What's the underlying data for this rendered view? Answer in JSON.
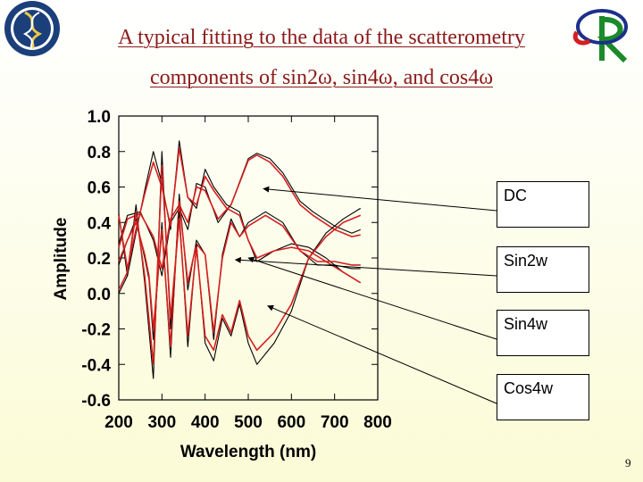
{
  "slide": {
    "title_line1": "A typical fitting to the data of the scatterometry",
    "title_line2": "components of sin2ω, sin4ω, and cos4ω",
    "page_number": "9",
    "seal_text": "ACADEMIA SINICA"
  },
  "labels": {
    "dc": "DC",
    "sin2w": "Sin2w",
    "sin4w": "Sin4w",
    "cos4w": "Cos4w"
  },
  "chart_data": {
    "type": "line",
    "xlabel": "Wavelength (nm)",
    "ylabel": "Amplitude",
    "xlim": [
      200,
      780
    ],
    "ylim": [
      -0.6,
      1.0
    ],
    "xticks": [
      200,
      300,
      400,
      500,
      600,
      700,
      800
    ],
    "yticks": [
      1.0,
      0.8,
      0.6,
      0.4,
      0.2,
      0.0,
      -0.2,
      -0.4,
      -0.6
    ],
    "colors": {
      "measured": "#000000",
      "fit": "#d42020"
    },
    "series": [
      {
        "component": "DC",
        "kind": "measured",
        "x": [
          200,
          220,
          250,
          280,
          300,
          320,
          340,
          360,
          380,
          400,
          430,
          460,
          500,
          520,
          550,
          580,
          620,
          650,
          700,
          740,
          760
        ],
        "y": [
          0.28,
          0.44,
          0.46,
          0.3,
          0.1,
          0.4,
          0.48,
          0.36,
          0.62,
          0.6,
          0.4,
          0.5,
          0.76,
          0.79,
          0.76,
          0.68,
          0.52,
          0.46,
          0.38,
          0.34,
          0.36
        ]
      },
      {
        "component": "DC",
        "kind": "fit",
        "x": [
          200,
          220,
          250,
          280,
          300,
          320,
          340,
          360,
          380,
          400,
          430,
          460,
          500,
          520,
          550,
          580,
          620,
          650,
          700,
          740,
          760
        ],
        "y": [
          0.26,
          0.42,
          0.45,
          0.32,
          0.14,
          0.42,
          0.5,
          0.4,
          0.6,
          0.58,
          0.42,
          0.5,
          0.75,
          0.78,
          0.74,
          0.66,
          0.5,
          0.44,
          0.36,
          0.32,
          0.33
        ]
      },
      {
        "component": "Sin2w",
        "kind": "measured",
        "x": [
          200,
          220,
          240,
          260,
          280,
          300,
          320,
          340,
          360,
          380,
          400,
          420,
          450,
          480,
          500,
          520,
          560,
          600,
          640,
          680,
          720,
          760
        ],
        "y": [
          0.45,
          0.1,
          0.34,
          0.58,
          0.8,
          0.62,
          0.36,
          0.86,
          0.54,
          0.48,
          0.7,
          0.6,
          0.5,
          0.46,
          0.3,
          0.18,
          0.24,
          0.28,
          0.26,
          0.2,
          0.12,
          0.06
        ]
      },
      {
        "component": "Sin2w",
        "kind": "fit",
        "x": [
          200,
          220,
          240,
          260,
          280,
          300,
          320,
          340,
          360,
          380,
          400,
          420,
          450,
          480,
          500,
          520,
          560,
          600,
          640,
          680,
          720,
          760
        ],
        "y": [
          0.44,
          0.14,
          0.36,
          0.56,
          0.74,
          0.6,
          0.38,
          0.82,
          0.54,
          0.5,
          0.66,
          0.58,
          0.48,
          0.44,
          0.3,
          0.2,
          0.24,
          0.26,
          0.24,
          0.18,
          0.12,
          0.06
        ]
      },
      {
        "component": "Sin4w",
        "kind": "measured",
        "x": [
          200,
          220,
          240,
          260,
          270,
          280,
          300,
          320,
          340,
          360,
          380,
          400,
          420,
          440,
          460,
          480,
          500,
          540,
          580,
          620,
          660,
          700,
          740,
          760
        ],
        "y": [
          0.16,
          0.3,
          0.42,
          0.2,
          0.08,
          -0.26,
          0.4,
          -0.36,
          0.56,
          0.02,
          0.3,
          0.22,
          -0.26,
          0.22,
          0.42,
          0.32,
          0.4,
          0.46,
          0.4,
          0.24,
          0.16,
          0.16,
          0.14,
          0.14
        ]
      },
      {
        "component": "Sin4w",
        "kind": "fit",
        "x": [
          200,
          220,
          240,
          260,
          270,
          280,
          300,
          320,
          340,
          360,
          380,
          400,
          420,
          440,
          460,
          480,
          500,
          540,
          580,
          620,
          660,
          700,
          740,
          760
        ],
        "y": [
          0.18,
          0.3,
          0.4,
          0.22,
          0.1,
          -0.2,
          0.36,
          -0.3,
          0.52,
          0.06,
          0.28,
          0.22,
          -0.22,
          0.2,
          0.4,
          0.32,
          0.38,
          0.44,
          0.38,
          0.24,
          0.18,
          0.18,
          0.16,
          0.16
        ]
      },
      {
        "component": "Cos4w",
        "kind": "measured",
        "x": [
          200,
          220,
          240,
          260,
          280,
          300,
          320,
          340,
          360,
          380,
          400,
          420,
          440,
          460,
          480,
          500,
          520,
          560,
          600,
          640,
          680,
          720,
          760
        ],
        "y": [
          0.0,
          0.1,
          0.5,
          0.06,
          -0.48,
          0.8,
          -0.2,
          0.46,
          -0.3,
          0.28,
          -0.28,
          -0.38,
          -0.14,
          -0.24,
          -0.06,
          -0.28,
          -0.4,
          -0.28,
          -0.1,
          0.2,
          0.34,
          0.42,
          0.48
        ]
      },
      {
        "component": "Cos4w",
        "kind": "fit",
        "x": [
          200,
          220,
          240,
          260,
          280,
          300,
          320,
          340,
          360,
          380,
          400,
          420,
          440,
          460,
          480,
          500,
          520,
          560,
          600,
          640,
          680,
          720,
          760
        ],
        "y": [
          0.02,
          0.12,
          0.46,
          0.1,
          -0.4,
          0.72,
          -0.14,
          0.42,
          -0.24,
          0.26,
          -0.24,
          -0.32,
          -0.12,
          -0.22,
          -0.04,
          -0.24,
          -0.32,
          -0.22,
          -0.06,
          0.2,
          0.32,
          0.4,
          0.44
        ]
      }
    ],
    "annotations": [
      {
        "label": "DC",
        "x": 535,
        "y": 0.59
      },
      {
        "label": "Sin2w",
        "x": 470,
        "y": 0.19
      },
      {
        "label": "Sin4w",
        "x": 500,
        "y": 0.2
      },
      {
        "label": "Cos4w",
        "x": 545,
        "y": -0.07
      }
    ]
  }
}
